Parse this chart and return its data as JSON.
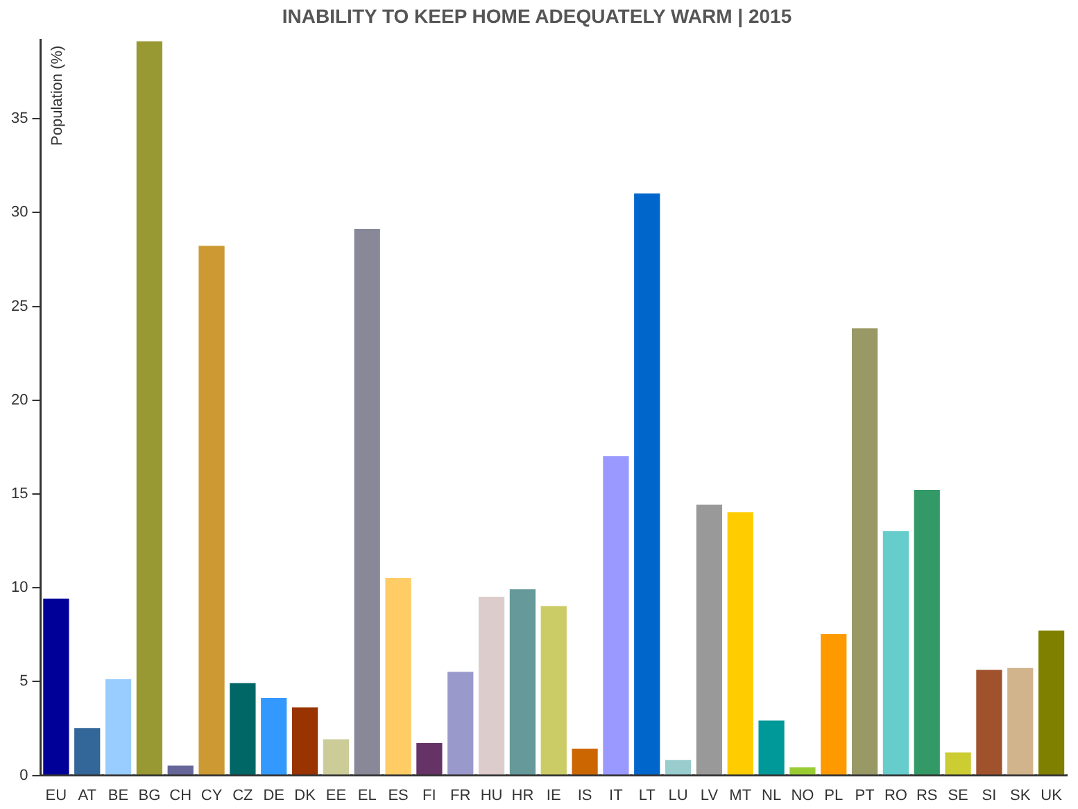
{
  "chart_data": {
    "type": "bar",
    "title": "INABILITY TO KEEP HOME ADEQUATELY WARM | 2015",
    "ylabel": "Population (%)",
    "categories": [
      "EU",
      "AT",
      "BE",
      "BG",
      "CH",
      "CY",
      "CZ",
      "DE",
      "DK",
      "EE",
      "EL",
      "ES",
      "FI",
      "FR",
      "HU",
      "HR",
      "IE",
      "IS",
      "IT",
      "LT",
      "LU",
      "LV",
      "MT",
      "NL",
      "NO",
      "PL",
      "PT",
      "RO",
      "RS",
      "SE",
      "SI",
      "SK",
      "UK"
    ],
    "values": [
      9.5,
      2.6,
      5.2,
      39.2,
      0.6,
      28.3,
      5.0,
      4.2,
      3.7,
      2.0,
      29.2,
      10.6,
      1.8,
      5.6,
      9.6,
      10.0,
      9.1,
      1.5,
      17.1,
      31.1,
      0.9,
      14.5,
      14.1,
      3.0,
      0.5,
      7.6,
      23.9,
      13.1,
      15.3,
      1.3,
      5.7,
      5.8,
      7.8
    ],
    "colors": [
      "#000099",
      "#336699",
      "#99ccff",
      "#999933",
      "#666699",
      "#cc9933",
      "#006666",
      "#3399ff",
      "#993300",
      "#cccc99",
      "#888899",
      "#ffcc66",
      "#663366",
      "#9999cc",
      "#ddcccc",
      "#669999",
      "#cccc66",
      "#cc6600",
      "#9999ff",
      "#0066cc",
      "#99cccc",
      "#999999",
      "#ffcc00",
      "#009999",
      "#99cc33",
      "#ff9900",
      "#999966",
      "#66cccc",
      "#339966",
      "#cccc33",
      "#a0522d",
      "#d2b48c",
      "#808000"
    ],
    "ylim": [
      0,
      39.2
    ],
    "yticks": [
      0,
      5,
      10,
      15,
      20,
      25,
      30,
      35
    ],
    "grid": false,
    "legend": false
  }
}
